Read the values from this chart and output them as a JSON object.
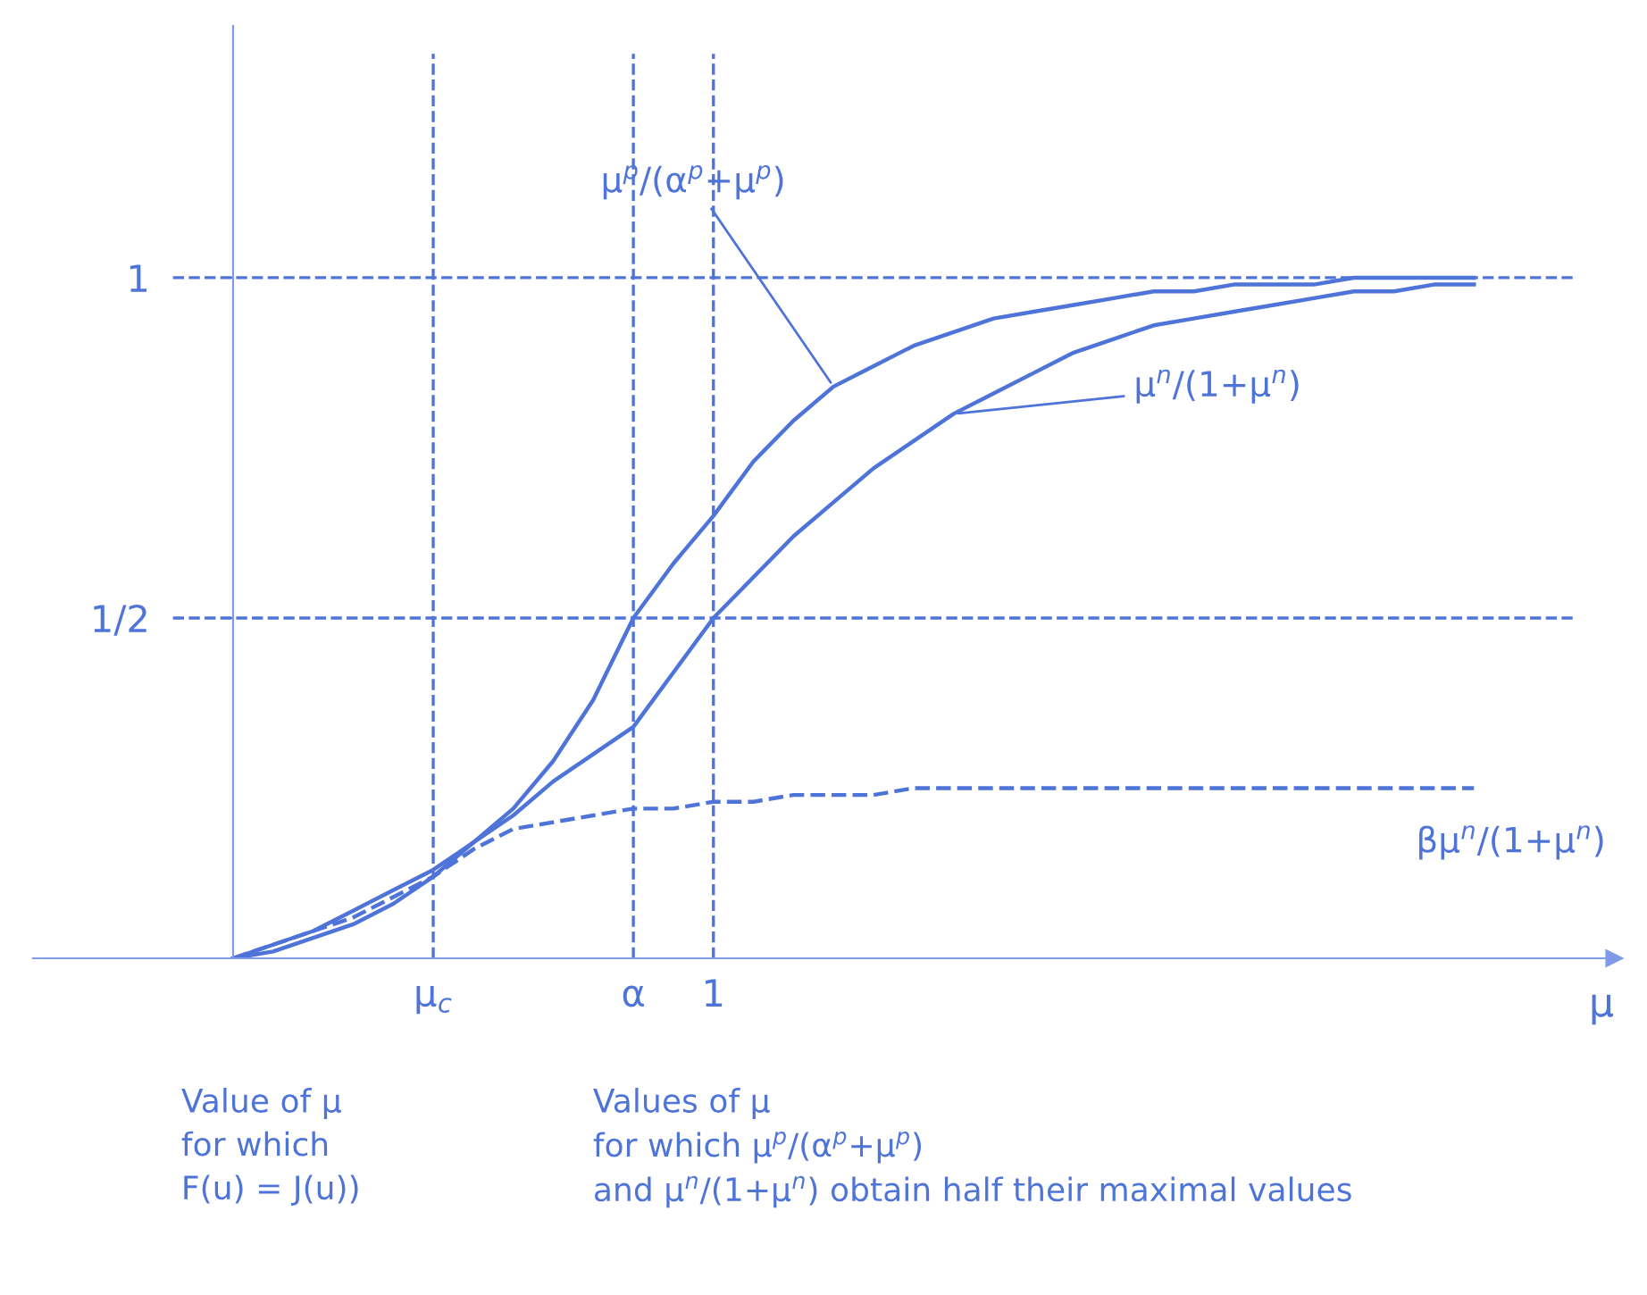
{
  "chart_data": {
    "type": "line",
    "xlabel": "μ",
    "ylim": [
      0,
      1.37
    ],
    "categories": [
      null,
      null,
      null,
      null,
      null,
      "μ$_{c}$",
      null,
      null,
      null,
      null,
      "α",
      null,
      "1",
      null,
      null,
      null,
      null,
      null,
      null,
      null,
      null,
      null,
      null,
      null,
      null,
      null,
      null,
      null,
      null,
      null,
      null,
      null
    ],
    "yticks": [
      {
        "value": 0.5,
        "label": "1/2"
      },
      1
    ],
    "grid": false,
    "marker": "none",
    "series": [
      {
        "name": "μ$^{p}$/(α$^{p}$+μ$^{p}$)",
        "color": "#4f74d9",
        "line_style": "solid",
        "values": [
          0,
          0.01,
          0.03,
          0.05,
          0.08,
          0.12,
          0.17,
          0.22,
          0.29,
          0.38,
          0.5,
          0.58,
          0.65,
          0.73,
          0.79,
          0.84,
          0.87,
          0.9,
          0.92,
          0.94,
          0.95,
          0.96,
          0.97,
          0.98,
          0.98,
          0.99,
          0.99,
          0.99,
          1.0,
          1.0,
          1.0,
          1.0
        ]
      },
      {
        "name": "μ$^{n}$/(1+μ$^{n}$)",
        "color": "#4f74d9",
        "line_style": "solid",
        "values": [
          0,
          0.02,
          0.04,
          0.07,
          0.1,
          0.13,
          0.17,
          0.21,
          0.26,
          0.3,
          0.34,
          0.42,
          0.5,
          0.56,
          0.62,
          0.67,
          0.72,
          0.76,
          0.8,
          0.83,
          0.86,
          0.89,
          0.91,
          0.93,
          0.94,
          0.95,
          0.96,
          0.97,
          0.98,
          0.98,
          0.99,
          0.99
        ]
      },
      {
        "name": "βμ$^{n}$/(1+μ$^{n}$)",
        "color": "#4f74d9",
        "line_style": "dashed",
        "values": [
          0,
          0.02,
          0.04,
          0.06,
          0.09,
          0.12,
          0.16,
          0.19,
          0.2,
          0.21,
          0.22,
          0.22,
          0.23,
          0.23,
          0.24,
          0.24,
          0.24,
          0.25,
          0.25,
          0.25,
          0.25,
          0.25,
          0.25,
          0.25,
          0.25,
          0.25,
          0.25,
          0.25,
          0.25,
          0.25,
          0.25,
          0.25
        ]
      }
    ],
    "ref_lines": [
      {
        "axis": "y",
        "value": 1,
        "line_style": "dashed",
        "color": "#4f74d9"
      },
      {
        "axis": "y",
        "value": 0.5,
        "line_style": "dashed",
        "color": "#4f74d9"
      },
      {
        "axis": "x",
        "value": "μ$_{c}$",
        "line_style": "dashed",
        "color": "#4f74d9"
      },
      {
        "axis": "x",
        "value": "α",
        "line_style": "dashed",
        "color": "#4f74d9"
      },
      {
        "axis": "x",
        "value": "1",
        "line_style": "dashed",
        "color": "#4f74d9"
      }
    ],
    "annotations": [
      "Value of μ\nfor which\nF(u) = J(u))",
      "Values of μ\nfor which μ$^{p}$/(α$^{p}$+μ$^{p}$)\nand μ$^{n}$/(1+μ$^{n}$) obtain half their maximal values"
    ]
  }
}
